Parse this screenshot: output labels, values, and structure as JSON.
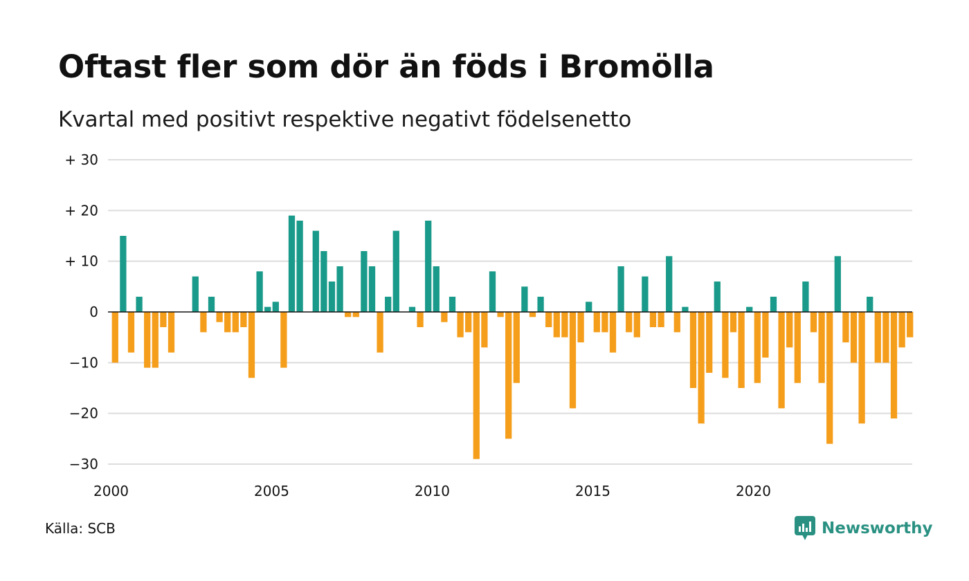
{
  "title": "Oftast fler som dör än föds i Bromölla",
  "subtitle": "Kvartal med positivt respektive negativt födelsenetto",
  "source": "Källa: SCB",
  "brand": {
    "name": "Newsworthy",
    "icon": "newsworthy-logo-icon",
    "color": "#2a9182"
  },
  "chart_data": {
    "type": "bar",
    "x_start": 2000,
    "x_end": 2025,
    "periods_per_year": 4,
    "xticks": [
      2000,
      2005,
      2010,
      2015,
      2020
    ],
    "xtick_labels": [
      "2000",
      "2005",
      "2010",
      "2015",
      "2020"
    ],
    "yticks": [
      30,
      20,
      10,
      0,
      -10,
      -20,
      -30
    ],
    "ytick_labels": [
      "+ 30",
      "+ 20",
      "+ 10",
      "0",
      "−10",
      "−20",
      "−30"
    ],
    "ylim": [
      -30,
      30
    ],
    "grid": true,
    "colors": {
      "positive": "#1a9a8a",
      "negative": "#f59e1c",
      "grid": "#dddddd",
      "zero_line": "#111111"
    },
    "values": [
      -10,
      15,
      -8,
      3,
      -11,
      -11,
      -3,
      -8,
      0,
      0,
      7,
      -4,
      3,
      -2,
      -4,
      -4,
      -3,
      -13,
      8,
      1,
      2,
      -11,
      19,
      18,
      0,
      16,
      12,
      6,
      9,
      -1,
      -1,
      12,
      9,
      -8,
      3,
      16,
      0,
      1,
      -3,
      18,
      9,
      -2,
      3,
      -5,
      -4,
      -29,
      -7,
      8,
      -1,
      -25,
      -14,
      5,
      -1,
      3,
      -3,
      -5,
      -5,
      -19,
      -6,
      2,
      -4,
      -4,
      -8,
      9,
      -4,
      -5,
      7,
      -3,
      -3,
      11,
      -4,
      1,
      -15,
      -22,
      -12,
      6,
      -13,
      -4,
      -15,
      1,
      -14,
      -9,
      3,
      -19,
      -7,
      -14,
      6,
      -4,
      -14,
      -26,
      11,
      -6,
      -10,
      -22,
      3,
      -10,
      -10,
      -21,
      -7,
      -5
    ]
  }
}
